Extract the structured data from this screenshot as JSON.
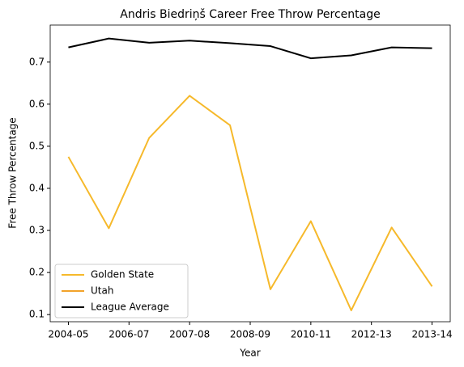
{
  "chart_data": {
    "type": "line",
    "title": "Andris Biedriņš Career Free Throw Percentage",
    "xlabel": "Year",
    "ylabel": "Free Throw Percentage",
    "x": [
      0,
      1,
      2,
      3,
      4,
      5,
      6,
      7,
      8,
      9
    ],
    "xlim": [
      -0.45,
      9.45
    ],
    "xticks": [
      {
        "value": 0,
        "label": "2004-05"
      },
      {
        "value": 1.5,
        "label": "2006-07"
      },
      {
        "value": 3,
        "label": "2007-08"
      },
      {
        "value": 4.5,
        "label": "2008-09"
      },
      {
        "value": 6,
        "label": "2010-11"
      },
      {
        "value": 7.5,
        "label": "2012-13"
      },
      {
        "value": 9,
        "label": "2013-14"
      }
    ],
    "ylim": [
      0.083,
      0.788
    ],
    "yticks": [
      0.1,
      0.2,
      0.3,
      0.4,
      0.5,
      0.6,
      0.7
    ],
    "legend": "lower left",
    "series": [
      {
        "name": "Golden State",
        "color": "#f6b92b",
        "values": [
          0.475,
          0.305,
          0.52,
          0.62,
          0.55,
          0.16,
          0.322,
          0.11,
          0.307,
          0.167
        ]
      },
      {
        "name": "Utah",
        "color": "#f2a32a",
        "values": [
          null,
          null,
          null,
          null,
          null,
          null,
          null,
          null,
          null,
          0.167
        ]
      },
      {
        "name": "League Average",
        "color": "#000000",
        "values": [
          0.735,
          0.756,
          0.746,
          0.751,
          0.745,
          0.738,
          0.709,
          0.716,
          0.735,
          0.733
        ]
      }
    ]
  }
}
